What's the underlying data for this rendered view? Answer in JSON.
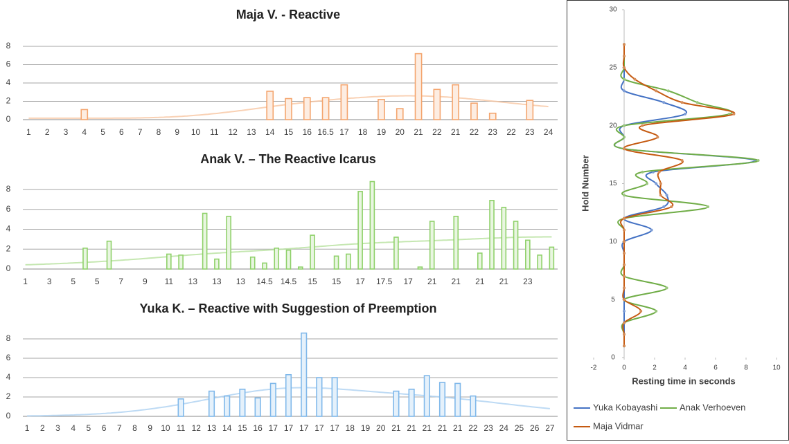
{
  "chart_data": [
    {
      "type": "bar",
      "title": "Maja V. - Reactive",
      "color": "#f4a56e",
      "categories": [
        "1",
        "2",
        "3",
        "4",
        "5",
        "6",
        "7",
        "8",
        "9",
        "10",
        "11",
        "12",
        "13",
        "14",
        "15",
        "16",
        "16.5",
        "17",
        "18",
        "19",
        "20",
        "21",
        "22",
        "21",
        "22",
        "23",
        "22",
        "23",
        "24"
      ],
      "values": [
        0,
        0,
        0,
        1.1,
        0,
        0,
        0,
        0,
        0,
        0,
        0,
        0,
        0,
        3.1,
        2.3,
        2.4,
        2.4,
        3.8,
        0,
        2.2,
        1.2,
        7.2,
        3.3,
        3.8,
        1.8,
        0.7,
        0,
        2.1,
        0
      ],
      "ylim": [
        0,
        8
      ],
      "yticks": [
        0,
        2,
        4,
        6,
        8
      ],
      "grid": true
    },
    {
      "type": "bar",
      "title": "Anak V. – The Reactive Icarus",
      "color": "#8fd16a",
      "categories": [
        "1",
        null,
        "3",
        null,
        "5",
        null,
        "5",
        null,
        "7",
        null,
        "9",
        null,
        "11",
        null,
        "13",
        null,
        "13",
        null,
        "13",
        null,
        "14.5",
        null,
        "14.5",
        null,
        "15",
        null,
        "15",
        null,
        "17",
        null,
        "17.5",
        null,
        "17",
        null,
        "21",
        null,
        "21",
        null,
        "21",
        null,
        "21",
        null,
        "23",
        null,
        null
      ],
      "values": [
        0,
        0,
        0,
        0,
        0,
        2.1,
        0,
        2.8,
        0,
        0,
        0,
        0,
        1.5,
        1.4,
        0,
        5.6,
        1.0,
        5.3,
        0,
        1.2,
        0.6,
        2.1,
        1.9,
        0.2,
        3.4,
        0,
        1.3,
        1.5,
        7.8,
        8.8,
        0,
        3.2,
        0,
        0.2,
        4.8,
        0,
        5.3,
        0,
        1.6,
        6.9,
        6.2,
        4.8,
        2.9,
        1.4,
        2.2
      ],
      "ylim": [
        0,
        8
      ],
      "yticks": [
        0,
        2,
        4,
        6,
        8
      ],
      "grid": true
    },
    {
      "type": "bar",
      "title": "Yuka K. – Reactive with Suggestion of Preemption",
      "color": "#7fb8ea",
      "categories": [
        "1",
        "2",
        "3",
        "4",
        "5",
        "6",
        "7",
        "8",
        "9",
        "10",
        "11",
        "12",
        "13",
        "14",
        "15",
        "16",
        "17",
        "17",
        "17",
        "17",
        "17",
        "18",
        "19",
        "20",
        "21",
        "21",
        "21",
        "21",
        "21",
        "22",
        "23",
        "24",
        "25",
        "26",
        "27"
      ],
      "values": [
        0,
        0,
        0,
        0,
        0,
        0,
        0,
        0,
        0,
        0,
        1.8,
        0,
        2.6,
        2.1,
        2.8,
        1.9,
        3.4,
        4.3,
        8.6,
        4.0,
        4.0,
        0,
        0,
        0,
        2.6,
        2.8,
        4.2,
        3.5,
        3.4,
        2.1,
        0,
        0,
        0,
        0,
        0
      ],
      "ylim": [
        0,
        8
      ],
      "yticks": [
        0,
        2,
        4,
        6,
        8
      ],
      "grid": true
    },
    {
      "type": "line",
      "orientation": "horizontal",
      "x_label": "Hold Number",
      "y_label": "Resting time in seconds",
      "x": [
        1,
        2,
        3,
        4,
        5,
        6,
        7,
        8,
        9,
        10,
        11,
        12,
        13,
        14,
        15,
        16,
        17,
        18,
        19,
        20,
        21,
        22,
        23,
        24,
        25,
        26,
        27
      ],
      "xlim": [
        0,
        30
      ],
      "xticks": [
        0,
        5,
        10,
        15,
        20,
        25,
        30
      ],
      "ylim": [
        -2,
        10
      ],
      "yticks": [
        -2,
        0,
        2,
        4,
        6,
        8,
        10
      ],
      "series": [
        {
          "name": "Yuka Kobayashi",
          "color": "#4472c4",
          "values": [
            0,
            0,
            0,
            0,
            0,
            0,
            0,
            0,
            0,
            0,
            1.8,
            0,
            2.6,
            2.8,
            2.1,
            1.9,
            8.6,
            0,
            0,
            0,
            4.0,
            2.6,
            0,
            0,
            0,
            0,
            0
          ]
        },
        {
          "name": "Anak Verhoeven",
          "color": "#70ad47",
          "values": [
            0,
            0,
            0,
            2.1,
            0,
            2.8,
            0,
            0,
            0,
            0,
            0,
            0,
            5.5,
            0,
            1.5,
            1.2,
            8.8,
            0,
            0,
            0,
            6.9,
            4.8,
            2.9,
            0,
            0,
            0,
            0
          ]
        },
        {
          "name": "Maja Vidmar",
          "color": "#c55a11",
          "values": [
            0,
            0,
            0,
            1.1,
            0,
            0,
            0,
            0,
            0,
            0,
            0,
            0,
            3.1,
            2.4,
            2.4,
            2.3,
            3.8,
            0,
            2.2,
            1.2,
            7.2,
            3.8,
            2.1,
            0.7,
            0,
            0,
            0
          ]
        }
      ]
    }
  ]
}
